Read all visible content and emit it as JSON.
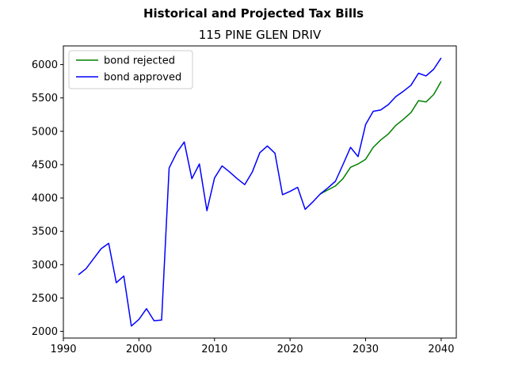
{
  "chart_data": {
    "type": "line",
    "suptitle": "Historical and Projected Tax Bills",
    "title": "115 PINE GLEN DRIV",
    "xlabel": "",
    "ylabel": "",
    "xlim": [
      1990,
      2042
    ],
    "ylim": [
      1900,
      6280
    ],
    "xticks": [
      1990,
      2000,
      2010,
      2020,
      2030,
      2040
    ],
    "yticks": [
      2000,
      2500,
      3000,
      3500,
      4000,
      4500,
      5000,
      5500,
      6000
    ],
    "grid": false,
    "legend_position": "upper-left",
    "series": [
      {
        "name": "bond rejected",
        "color": "#008000",
        "x": [
          2024,
          2025,
          2026,
          2027,
          2028,
          2029,
          2030,
          2031,
          2032,
          2033,
          2034,
          2035,
          2036,
          2037,
          2038,
          2039,
          2040
        ],
        "values": [
          4060,
          4120,
          4180,
          4290,
          4460,
          4510,
          4580,
          4760,
          4870,
          4960,
          5090,
          5180,
          5280,
          5460,
          5440,
          5550,
          5750
        ]
      },
      {
        "name": "bond approved",
        "color": "#0000ff",
        "x": [
          1992,
          1993,
          1994,
          1995,
          1996,
          1997,
          1998,
          1999,
          2000,
          2001,
          2002,
          2003,
          2004,
          2005,
          2006,
          2007,
          2008,
          2009,
          2010,
          2011,
          2012,
          2013,
          2014,
          2015,
          2016,
          2017,
          2018,
          2019,
          2020,
          2021,
          2022,
          2023,
          2024,
          2025,
          2026,
          2027,
          2028,
          2029,
          2030,
          2031,
          2032,
          2033,
          2034,
          2035,
          2036,
          2037,
          2038,
          2039,
          2040
        ],
        "values": [
          2850,
          2940,
          3090,
          3240,
          3320,
          2730,
          2830,
          2080,
          2180,
          2340,
          2160,
          2170,
          4450,
          4680,
          4840,
          4290,
          4510,
          3810,
          4300,
          4480,
          4390,
          4290,
          4200,
          4390,
          4680,
          4780,
          4670,
          4050,
          4100,
          4160,
          3830,
          3940,
          4060,
          4150,
          4250,
          4500,
          4760,
          4620,
          5100,
          5300,
          5320,
          5400,
          5520,
          5600,
          5690,
          5870,
          5830,
          5930,
          6100
        ]
      }
    ]
  }
}
